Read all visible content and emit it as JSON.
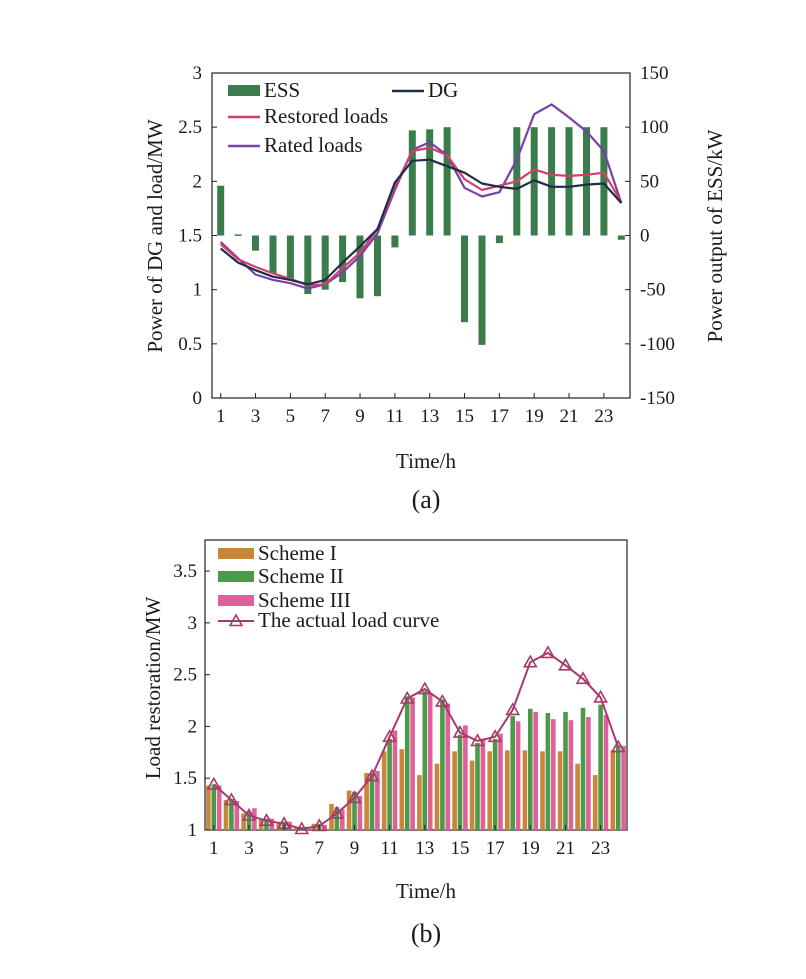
{
  "colors": {
    "ess": "#3a7d4a",
    "dg": "#1f2d4a",
    "restored": "#d0406a",
    "rated": "#7a3fa8",
    "scheme1": "#c8863a",
    "scheme2": "#4a9a4a",
    "scheme3": "#e0609a",
    "actual": "#a83a6a"
  },
  "chart_data": [
    {
      "type": "bar",
      "caption": "(a)",
      "xlabel": "Time/h",
      "ylabel": "Power of DG and load/MW",
      "ylabel_right": "Power output of ESS/kW",
      "x": [
        1,
        2,
        3,
        4,
        5,
        6,
        7,
        8,
        9,
        10,
        11,
        12,
        13,
        14,
        15,
        16,
        17,
        18,
        19,
        20,
        21,
        22,
        23,
        24
      ],
      "x_ticks": [
        "1",
        "3",
        "5",
        "7",
        "9",
        "11",
        "13",
        "15",
        "17",
        "19",
        "21",
        "23"
      ],
      "y_ticks": [
        "0",
        "0.5",
        "1",
        "1.5",
        "2",
        "2.5",
        "3"
      ],
      "y2_ticks": [
        "-150",
        "-100",
        "-50",
        "0",
        "50",
        "100",
        "150"
      ],
      "ylim": [
        0,
        3
      ],
      "y2lim": [
        -150,
        150
      ],
      "legend_position": "top-left",
      "series": [
        {
          "name": "ESS",
          "kind": "bar",
          "axis": "right",
          "color_key": "ess",
          "values": [
            46,
            1,
            -14,
            -35,
            -40,
            -54,
            -50,
            -43,
            -58,
            -56,
            -11,
            97,
            98,
            100,
            -80,
            -101,
            -7,
            100,
            100,
            100,
            100,
            100,
            100,
            -4
          ]
        },
        {
          "name": "DG",
          "kind": "line",
          "axis": "left",
          "color_key": "dg",
          "values": [
            1.38,
            1.25,
            1.18,
            1.12,
            1.09,
            1.05,
            1.09,
            1.25,
            1.4,
            1.56,
            1.99,
            2.19,
            2.2,
            2.14,
            2.08,
            1.98,
            1.95,
            1.93,
            2.01,
            1.95,
            1.95,
            1.97,
            1.98,
            1.8
          ]
        },
        {
          "name": "Restored loads",
          "kind": "line",
          "axis": "left",
          "color_key": "restored",
          "values": [
            1.42,
            1.28,
            1.21,
            1.15,
            1.1,
            1.04,
            1.05,
            1.2,
            1.34,
            1.56,
            1.95,
            2.28,
            2.31,
            2.24,
            2.02,
            1.92,
            1.96,
            2.0,
            2.11,
            2.06,
            2.05,
            2.06,
            2.08,
            1.81
          ]
        },
        {
          "name": "Rated loads",
          "kind": "line",
          "axis": "left",
          "color_key": "rated",
          "values": [
            1.44,
            1.29,
            1.14,
            1.09,
            1.06,
            1.01,
            1.05,
            1.16,
            1.31,
            1.52,
            1.92,
            2.29,
            2.36,
            2.24,
            1.94,
            1.86,
            1.9,
            2.2,
            2.62,
            2.71,
            2.59,
            2.46,
            2.28,
            1.8
          ]
        }
      ]
    },
    {
      "type": "bar",
      "caption": "(b)",
      "xlabel": "Time/h",
      "ylabel": "Load restoration/MW",
      "x": [
        1,
        2,
        3,
        4,
        5,
        6,
        7,
        8,
        9,
        10,
        11,
        12,
        13,
        14,
        15,
        16,
        17,
        18,
        19,
        20,
        21,
        22,
        23,
        24
      ],
      "x_ticks": [
        "1",
        "3",
        "5",
        "7",
        "9",
        "11",
        "13",
        "15",
        "17",
        "19",
        "21",
        "23"
      ],
      "y_ticks": [
        "1",
        "1.5",
        "2",
        "2.5",
        "3",
        "3.5"
      ],
      "ylim": [
        1,
        3.8
      ],
      "legend_position": "top-left",
      "series": [
        {
          "name": "Scheme I",
          "kind": "bar",
          "color_key": "scheme1",
          "values": [
            1.43,
            1.29,
            1.16,
            1.1,
            1.07,
            1.03,
            1.06,
            1.25,
            1.38,
            1.55,
            1.76,
            1.78,
            1.53,
            1.64,
            1.76,
            1.67,
            1.76,
            1.77,
            1.77,
            1.76,
            1.76,
            1.64,
            1.53,
            1.77
          ]
        },
        {
          "name": "Scheme II",
          "kind": "bar",
          "color_key": "scheme2",
          "values": [
            1.44,
            1.3,
            1.18,
            1.11,
            1.08,
            1.03,
            1.06,
            1.22,
            1.37,
            1.55,
            1.88,
            2.29,
            2.34,
            2.26,
            1.92,
            1.84,
            1.88,
            2.1,
            2.17,
            2.13,
            2.14,
            2.18,
            2.21,
            1.82
          ]
        },
        {
          "name": "Scheme III",
          "kind": "bar",
          "color_key": "scheme3",
          "values": [
            1.43,
            1.28,
            1.21,
            1.11,
            1.08,
            1.03,
            1.05,
            1.2,
            1.33,
            1.57,
            1.96,
            2.28,
            2.31,
            2.22,
            2.01,
            1.88,
            1.93,
            2.05,
            2.14,
            2.07,
            2.06,
            2.09,
            2.11,
            1.81
          ]
        },
        {
          "name": "The actual load curve",
          "kind": "line",
          "marker": "triangle",
          "color_key": "actual",
          "values": [
            1.44,
            1.29,
            1.14,
            1.09,
            1.06,
            1.01,
            1.04,
            1.16,
            1.31,
            1.52,
            1.9,
            2.27,
            2.36,
            2.24,
            1.94,
            1.86,
            1.9,
            2.16,
            2.62,
            2.71,
            2.59,
            2.46,
            2.28,
            1.8
          ]
        }
      ]
    }
  ]
}
